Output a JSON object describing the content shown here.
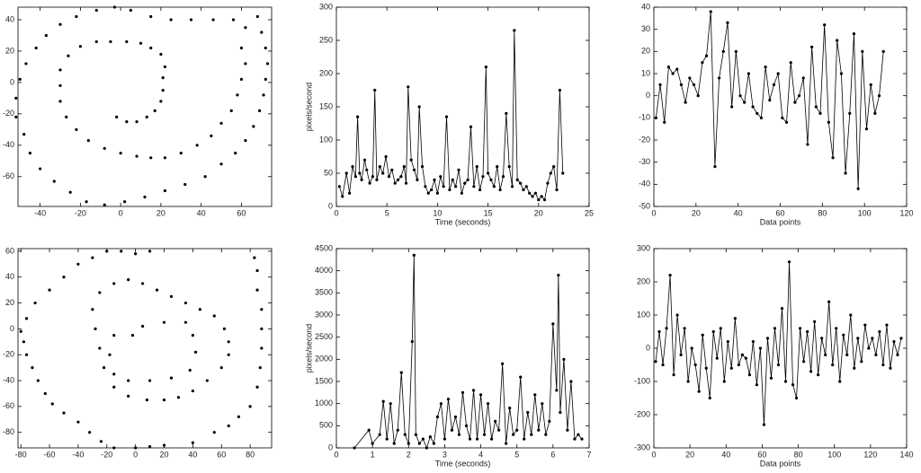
{
  "chart_data": [
    {
      "type": "scatter",
      "color": "#000000",
      "x": [
        -2,
        3,
        8,
        13,
        17,
        20,
        21,
        21,
        22,
        20,
        15,
        10,
        3,
        -5,
        -12,
        -20,
        -26,
        -30,
        -30,
        -30,
        -27,
        -22,
        -16,
        -8,
        0,
        8,
        15,
        22,
        30,
        38,
        45,
        50,
        55,
        58,
        60,
        62,
        60,
        62,
        56,
        46,
        35,
        25,
        15,
        5,
        -3,
        -12,
        -22,
        -30,
        -37,
        -42,
        -47,
        -50,
        -52,
        -52,
        -48,
        -45,
        -40,
        -33,
        -25,
        -17,
        -8,
        2,
        12,
        22,
        32,
        42,
        50,
        57,
        62,
        66,
        69,
        71,
        72,
        73,
        72,
        70,
        68
      ],
      "y": [
        -22,
        -25,
        -25,
        -22,
        -18,
        -12,
        -5,
        3,
        10,
        18,
        22,
        25,
        26,
        26,
        26,
        23,
        17,
        8,
        -2,
        -12,
        -22,
        -30,
        -37,
        -42,
        -45,
        -47,
        -48,
        -48,
        -45,
        -40,
        -34,
        -26,
        -18,
        -8,
        2,
        12,
        22,
        35,
        40,
        40,
        40,
        40,
        42,
        46,
        48,
        46,
        42,
        37,
        30,
        22,
        12,
        2,
        -10,
        -22,
        -33,
        -45,
        -55,
        -63,
        -70,
        -76,
        -78,
        -76,
        -73,
        -69,
        -65,
        -60,
        -52,
        -45,
        -37,
        -28,
        -18,
        -8,
        2,
        12,
        22,
        32,
        42
      ],
      "xlim": [
        -51,
        75
      ],
      "xticks": [
        -40,
        -20,
        0,
        20,
        40,
        60
      ],
      "ylim": [
        -79,
        48
      ],
      "yticks": [
        -60,
        -40,
        -20,
        0,
        20,
        40
      ]
    },
    {
      "type": "line",
      "color": "#000000",
      "xlabel": "Time (seconds)",
      "ylabel": "pixels/second",
      "x": [
        0.3,
        0.6,
        1.0,
        1.3,
        1.6,
        1.9,
        2.1,
        2.3,
        2.5,
        2.8,
        3.0,
        3.3,
        3.6,
        3.8,
        4.0,
        4.3,
        4.6,
        4.9,
        5.2,
        5.5,
        5.8,
        6.1,
        6.4,
        6.7,
        6.9,
        7.1,
        7.4,
        7.7,
        8.0,
        8.2,
        8.5,
        8.8,
        9.1,
        9.4,
        9.7,
        10.0,
        10.3,
        10.6,
        10.9,
        11.2,
        11.5,
        11.8,
        12.1,
        12.4,
        12.7,
        13.0,
        13.3,
        13.6,
        13.9,
        14.2,
        14.5,
        14.8,
        15.0,
        15.3,
        15.6,
        15.9,
        16.2,
        16.5,
        16.8,
        17.1,
        17.4,
        17.6,
        17.9,
        18.2,
        18.5,
        18.8,
        19.1,
        19.4,
        19.7,
        20.0,
        20.3,
        20.6,
        20.9,
        21.2,
        21.5,
        21.8,
        22.1,
        22.4
      ],
      "values": [
        30,
        15,
        50,
        20,
        60,
        45,
        135,
        50,
        40,
        70,
        55,
        35,
        45,
        175,
        40,
        60,
        50,
        75,
        45,
        55,
        35,
        40,
        45,
        60,
        35,
        180,
        70,
        55,
        40,
        150,
        60,
        30,
        20,
        25,
        40,
        20,
        45,
        30,
        135,
        25,
        40,
        30,
        55,
        20,
        35,
        40,
        120,
        30,
        60,
        25,
        45,
        210,
        50,
        40,
        30,
        60,
        25,
        45,
        140,
        60,
        30,
        265,
        40,
        35,
        25,
        30,
        20,
        15,
        20,
        10,
        15,
        10,
        35,
        50,
        60,
        25,
        175,
        50
      ],
      "xlim": [
        0,
        25
      ],
      "xticks": [
        0,
        5,
        10,
        15,
        20,
        25
      ],
      "ylim": [
        0,
        300
      ],
      "yticks": [
        0,
        50,
        100,
        150,
        200,
        250,
        300
      ]
    },
    {
      "type": "line",
      "color": "#000000",
      "xlabel": "Data points",
      "x": [
        1,
        3,
        5,
        7,
        9,
        11,
        13,
        15,
        17,
        19,
        21,
        23,
        25,
        27,
        29,
        31,
        33,
        35,
        37,
        39,
        41,
        43,
        45,
        47,
        49,
        51,
        53,
        55,
        57,
        59,
        61,
        63,
        65,
        67,
        69,
        71,
        73,
        75,
        77,
        79,
        81,
        83,
        85,
        87,
        89,
        91,
        93,
        95,
        97,
        99,
        101,
        103,
        105,
        107,
        109
      ],
      "values": [
        -10,
        5,
        -12,
        13,
        10,
        12,
        5,
        -3,
        8,
        5,
        0,
        15,
        18,
        38,
        -32,
        8,
        20,
        33,
        -5,
        20,
        0,
        -3,
        10,
        -5,
        -8,
        -10,
        13,
        -2,
        5,
        10,
        -10,
        -12,
        15,
        -3,
        0,
        8,
        -22,
        22,
        -5,
        -8,
        32,
        -12,
        -28,
        25,
        10,
        -35,
        -8,
        28,
        -42,
        20,
        -15,
        5,
        -8,
        0,
        20
      ],
      "xlim": [
        0,
        120
      ],
      "xticks": [
        0,
        20,
        40,
        60,
        80,
        100,
        120
      ],
      "ylim": [
        -50,
        40
      ],
      "yticks": [
        -50,
        -40,
        -30,
        -20,
        -10,
        0,
        10,
        20,
        30,
        40
      ]
    },
    {
      "type": "scatter",
      "color": "#000000",
      "x": [
        -78,
        -76,
        -72,
        -68,
        -63,
        -58,
        -50,
        -40,
        -32,
        -24,
        -15,
        0,
        10,
        20,
        40,
        55,
        65,
        72,
        80,
        85,
        87,
        88,
        88,
        88,
        85,
        85,
        83,
        -20,
        -10,
        0,
        10,
        -30,
        -40,
        -50,
        -60,
        -70,
        -76,
        -80,
        -5,
        5,
        15,
        25,
        35,
        45,
        55,
        62,
        65,
        65,
        60,
        50,
        40,
        30,
        20,
        8,
        -5,
        -15,
        -22,
        -25,
        -28,
        -30,
        -25,
        -15,
        -15,
        -18,
        -15,
        -5,
        10,
        25,
        38,
        42,
        40,
        35,
        20,
        5,
        -2
      ],
      "y": [
        -10,
        -20,
        -30,
        -40,
        -50,
        -58,
        -65,
        -72,
        -80,
        -87,
        -92,
        -92,
        -91,
        -90,
        -88,
        -80,
        -75,
        -68,
        -60,
        -45,
        -30,
        -15,
        0,
        15,
        30,
        45,
        55,
        60,
        60,
        58,
        60,
        55,
        50,
        40,
        30,
        20,
        8,
        -2,
        38,
        35,
        30,
        25,
        20,
        15,
        10,
        0,
        -10,
        -20,
        -30,
        -40,
        -48,
        -53,
        -55,
        -55,
        -52,
        -45,
        -30,
        -15,
        0,
        15,
        28,
        35,
        -5,
        -20,
        -35,
        -40,
        -40,
        -38,
        -32,
        -18,
        -5,
        5,
        5,
        2,
        -5
      ],
      "xlim": [
        -82,
        95
      ],
      "xticks": [
        -80,
        -60,
        -40,
        -20,
        0,
        20,
        40,
        60,
        80
      ],
      "ylim": [
        -92,
        62
      ],
      "yticks": [
        -80,
        -60,
        -40,
        -20,
        0,
        20,
        40,
        60
      ]
    },
    {
      "type": "line",
      "color": "#000000",
      "xlabel": "Time (seconds)",
      "ylabel": "pixels/second",
      "x": [
        0.5,
        0.9,
        1.0,
        1.2,
        1.3,
        1.4,
        1.5,
        1.6,
        1.7,
        1.8,
        1.9,
        2.0,
        2.1,
        2.15,
        2.2,
        2.3,
        2.4,
        2.5,
        2.6,
        2.7,
        2.8,
        2.9,
        3.0,
        3.1,
        3.2,
        3.3,
        3.4,
        3.5,
        3.6,
        3.7,
        3.8,
        3.9,
        4.0,
        4.1,
        4.2,
        4.3,
        4.4,
        4.5,
        4.6,
        4.7,
        4.8,
        4.9,
        5.0,
        5.1,
        5.2,
        5.3,
        5.4,
        5.5,
        5.6,
        5.7,
        5.8,
        5.9,
        6.0,
        6.1,
        6.15,
        6.2,
        6.3,
        6.4,
        6.5,
        6.6,
        6.7,
        6.8
      ],
      "values": [
        0,
        400,
        100,
        300,
        1050,
        200,
        1000,
        100,
        400,
        1700,
        300,
        100,
        2400,
        4350,
        300,
        100,
        200,
        0,
        250,
        100,
        700,
        1000,
        200,
        1100,
        400,
        700,
        300,
        1250,
        500,
        200,
        1300,
        200,
        1200,
        300,
        1000,
        200,
        600,
        400,
        1900,
        100,
        900,
        300,
        400,
        1600,
        200,
        800,
        300,
        1200,
        400,
        1000,
        300,
        600,
        2800,
        1300,
        3900,
        800,
        2000,
        400,
        1500,
        200,
        300,
        200
      ],
      "xlim": [
        0,
        7
      ],
      "xticks": [
        0,
        1,
        2,
        3,
        4,
        5,
        6,
        7
      ],
      "ylim": [
        0,
        4500
      ],
      "yticks": [
        0,
        500,
        1000,
        1500,
        2000,
        2500,
        3000,
        3500,
        4000,
        4500
      ]
    },
    {
      "type": "line",
      "color": "#000000",
      "xlabel": "Data points",
      "x": [
        1,
        3,
        5,
        7,
        9,
        11,
        13,
        15,
        17,
        19,
        21,
        23,
        25,
        27,
        29,
        31,
        33,
        35,
        37,
        39,
        41,
        43,
        45,
        47,
        49,
        51,
        53,
        55,
        57,
        59,
        61,
        63,
        65,
        67,
        69,
        71,
        73,
        75,
        77,
        79,
        81,
        83,
        85,
        87,
        89,
        91,
        93,
        95,
        97,
        99,
        101,
        103,
        105,
        107,
        109,
        111,
        113,
        115,
        117,
        119,
        121,
        123,
        125,
        127,
        129,
        131,
        133,
        135,
        137
      ],
      "values": [
        -40,
        50,
        -50,
        60,
        220,
        -80,
        100,
        -20,
        60,
        -100,
        0,
        -50,
        -130,
        40,
        -60,
        -150,
        50,
        -30,
        60,
        -100,
        20,
        -60,
        90,
        -50,
        -20,
        -30,
        -80,
        20,
        -110,
        0,
        -230,
        30,
        -90,
        60,
        -50,
        120,
        -100,
        260,
        -110,
        -150,
        60,
        -40,
        50,
        -70,
        80,
        -80,
        30,
        -20,
        140,
        -50,
        60,
        -100,
        40,
        -20,
        100,
        -60,
        30,
        -40,
        70,
        0,
        30,
        -20,
        50,
        -50,
        70,
        -60,
        20,
        -20,
        30
      ],
      "xlim": [
        0,
        140
      ],
      "xticks": [
        0,
        20,
        40,
        60,
        80,
        100,
        120,
        140
      ],
      "ylim": [
        -300,
        300
      ],
      "yticks": [
        -300,
        -200,
        -100,
        0,
        100,
        200,
        300
      ]
    }
  ]
}
